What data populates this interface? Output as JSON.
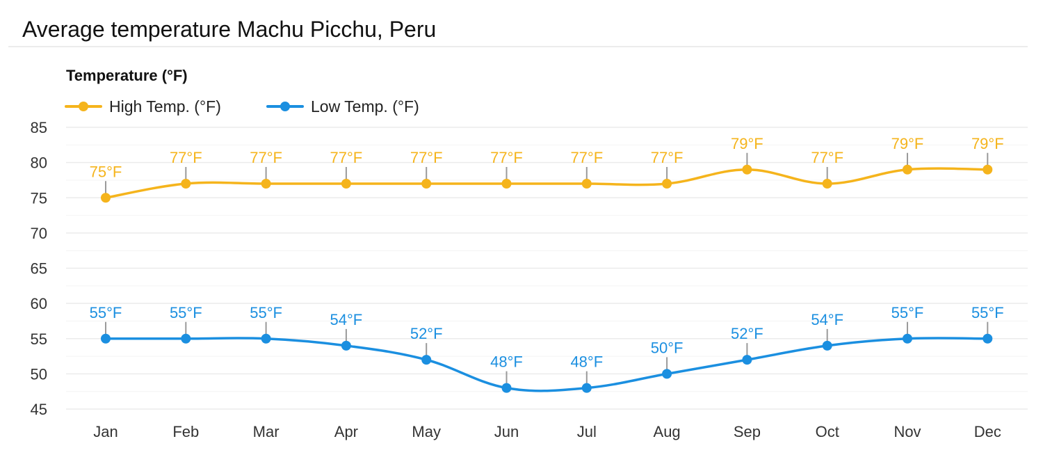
{
  "page_title": "Average temperature Machu Picchu, Peru",
  "colors": {
    "high": "#f5b41c",
    "low": "#1b8fe0",
    "grid": "#ebebeb",
    "leader": "#9a9a9a"
  },
  "chart_data": {
    "type": "line",
    "title": "Average temperature Machu Picchu, Peru",
    "ylabel": "Temperature (°F)",
    "xlabel": "",
    "categories": [
      "Jan",
      "Feb",
      "Mar",
      "Apr",
      "May",
      "Jun",
      "Jul",
      "Aug",
      "Sep",
      "Oct",
      "Nov",
      "Dec"
    ],
    "ylim": [
      45,
      85
    ],
    "yticks": [
      85,
      80,
      75,
      70,
      65,
      60,
      55,
      50,
      45
    ],
    "grid": true,
    "legend_position": "top-left",
    "series": [
      {
        "name": "High Temp. (°F)",
        "color": "#f5b41c",
        "values": [
          75,
          77,
          77,
          77,
          77,
          77,
          77,
          77,
          79,
          77,
          79,
          79
        ],
        "labels": [
          "75°F",
          "77°F",
          "77°F",
          "77°F",
          "77°F",
          "77°F",
          "77°F",
          "77°F",
          "79°F",
          "77°F",
          "79°F",
          "79°F"
        ]
      },
      {
        "name": "Low Temp. (°F)",
        "color": "#1b8fe0",
        "values": [
          55,
          55,
          55,
          54,
          52,
          48,
          48,
          50,
          52,
          54,
          55,
          55
        ],
        "labels": [
          "55°F",
          "55°F",
          "55°F",
          "54°F",
          "52°F",
          "48°F",
          "48°F",
          "50°F",
          "52°F",
          "54°F",
          "55°F",
          "55°F"
        ]
      }
    ]
  }
}
